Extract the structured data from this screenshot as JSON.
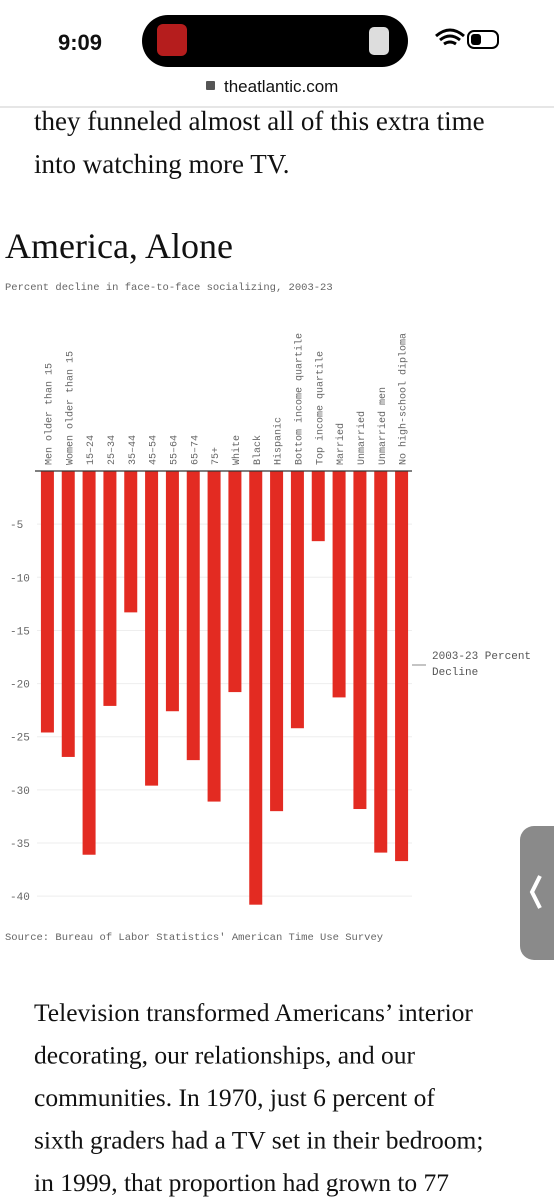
{
  "status_bar": {
    "time": "9:09"
  },
  "browser": {
    "url": "theatlantic.com"
  },
  "article": {
    "lead_line": [
      "they funneled almost all of this extra time",
      "into watching more TV."
    ],
    "paragraph": [
      "Television transformed Americans’ interior",
      "decorating, our relationships, and our",
      "communities. In 1970, just 6 percent of",
      "sixth graders had a TV set in their bedroom;",
      "in 1999, that proportion had grown to 77"
    ]
  },
  "chart_data": {
    "type": "bar",
    "title": "America, Alone",
    "subtitle": "Percent decline in face-to-face socializing, 2003-23",
    "source": "Source: Bureau of Labor Statistics' American Time Use Survey",
    "categories": [
      "Men older than 15",
      "Women older than 15",
      "15–24",
      "25–34",
      "35–44",
      "45–54",
      "55–64",
      "65–74",
      "75+",
      "White",
      "Black",
      "Hispanic",
      "Bottom income quartile",
      "Top income quartile",
      "Married",
      "Unmarried",
      "Unmarried men",
      "No high-school diploma"
    ],
    "series": [
      {
        "name": "2003-23 Percent Decline",
        "color": "#e32b22",
        "values": [
          -24.6,
          -26.9,
          -36.1,
          -22.1,
          -13.3,
          -29.6,
          -22.6,
          -27.2,
          -31.1,
          -20.8,
          -40.8,
          -32.0,
          -24.2,
          -6.6,
          -21.3,
          -31.8,
          -35.9,
          -36.7
        ]
      }
    ],
    "ylim": [
      -41.3,
      0
    ],
    "yticks": [
      -5,
      -10,
      -15,
      -20,
      -25,
      -30,
      -35,
      -40
    ],
    "grid": true,
    "legend": "right"
  }
}
